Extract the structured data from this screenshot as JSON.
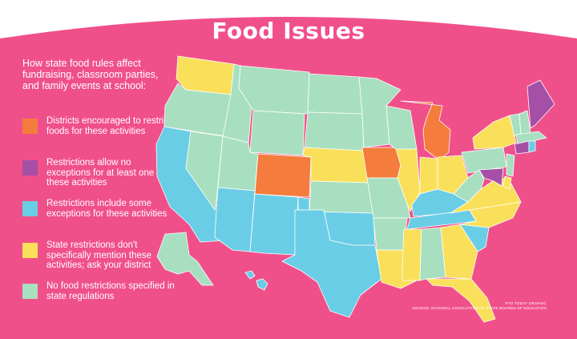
{
  "title": "Food Issues",
  "intro": "How state food rules affect fundraising, classroom parties, and family events at school:",
  "colors": {
    "background": "#f0508a",
    "orange": "#f47c3c",
    "purple": "#a64fa6",
    "blue": "#6acde6",
    "yellow": "#fae05a",
    "green": "#a8dfc0"
  },
  "legend": [
    {
      "key": "orange",
      "label": "Districts encouraged to restrict foods for these activities"
    },
    {
      "key": "purple",
      "label": "Restrictions allow no exceptions for at least one of these activities"
    },
    {
      "key": "blue",
      "label": "Restrictions include some exceptions for these activities"
    },
    {
      "key": "yellow",
      "label": "State restrictions don't specifically mention these activities; ask your district"
    },
    {
      "key": "green",
      "label": "No food restrictions specified in state regulations"
    }
  ],
  "credit": {
    "line1": "PTO TODAY GRAPHIC",
    "line2": "SOURCE: NATIONAL ASSOCIATION OF STATE BOARDS OF EDUCATION"
  },
  "states": [
    {
      "name": "WA",
      "category": "yellow"
    },
    {
      "name": "OR",
      "category": "green"
    },
    {
      "name": "CA",
      "category": "blue"
    },
    {
      "name": "NV",
      "category": "green"
    },
    {
      "name": "ID",
      "category": "green"
    },
    {
      "name": "MT",
      "category": "green"
    },
    {
      "name": "WY",
      "category": "green"
    },
    {
      "name": "UT",
      "category": "green"
    },
    {
      "name": "AZ",
      "category": "blue"
    },
    {
      "name": "CO",
      "category": "orange"
    },
    {
      "name": "NM",
      "category": "blue"
    },
    {
      "name": "ND",
      "category": "green"
    },
    {
      "name": "SD",
      "category": "green"
    },
    {
      "name": "NE",
      "category": "yellow"
    },
    {
      "name": "KS",
      "category": "green"
    },
    {
      "name": "OK",
      "category": "blue"
    },
    {
      "name": "TX",
      "category": "blue"
    },
    {
      "name": "MN",
      "category": "green"
    },
    {
      "name": "IA",
      "category": "orange"
    },
    {
      "name": "MO",
      "category": "green"
    },
    {
      "name": "AR",
      "category": "green"
    },
    {
      "name": "LA",
      "category": "yellow"
    },
    {
      "name": "WI",
      "category": "green"
    },
    {
      "name": "IL",
      "category": "yellow"
    },
    {
      "name": "MI",
      "category": "orange"
    },
    {
      "name": "IN",
      "category": "yellow"
    },
    {
      "name": "OH",
      "category": "yellow"
    },
    {
      "name": "KY",
      "category": "blue"
    },
    {
      "name": "TN",
      "category": "blue"
    },
    {
      "name": "MS",
      "category": "yellow"
    },
    {
      "name": "AL",
      "category": "green"
    },
    {
      "name": "GA",
      "category": "yellow"
    },
    {
      "name": "FL",
      "category": "yellow"
    },
    {
      "name": "SC",
      "category": "blue"
    },
    {
      "name": "NC",
      "category": "yellow"
    },
    {
      "name": "VA",
      "category": "yellow"
    },
    {
      "name": "WV",
      "category": "green"
    },
    {
      "name": "PA",
      "category": "green"
    },
    {
      "name": "NY",
      "category": "yellow"
    },
    {
      "name": "VT",
      "category": "green"
    },
    {
      "name": "NH",
      "category": "green"
    },
    {
      "name": "ME",
      "category": "purple"
    },
    {
      "name": "MA",
      "category": "green"
    },
    {
      "name": "CT",
      "category": "purple"
    },
    {
      "name": "RI",
      "category": "blue"
    },
    {
      "name": "NJ",
      "category": "green"
    },
    {
      "name": "DE",
      "category": "yellow"
    },
    {
      "name": "MD",
      "category": "purple"
    },
    {
      "name": "AK",
      "category": "green"
    },
    {
      "name": "HI",
      "category": "blue"
    }
  ]
}
